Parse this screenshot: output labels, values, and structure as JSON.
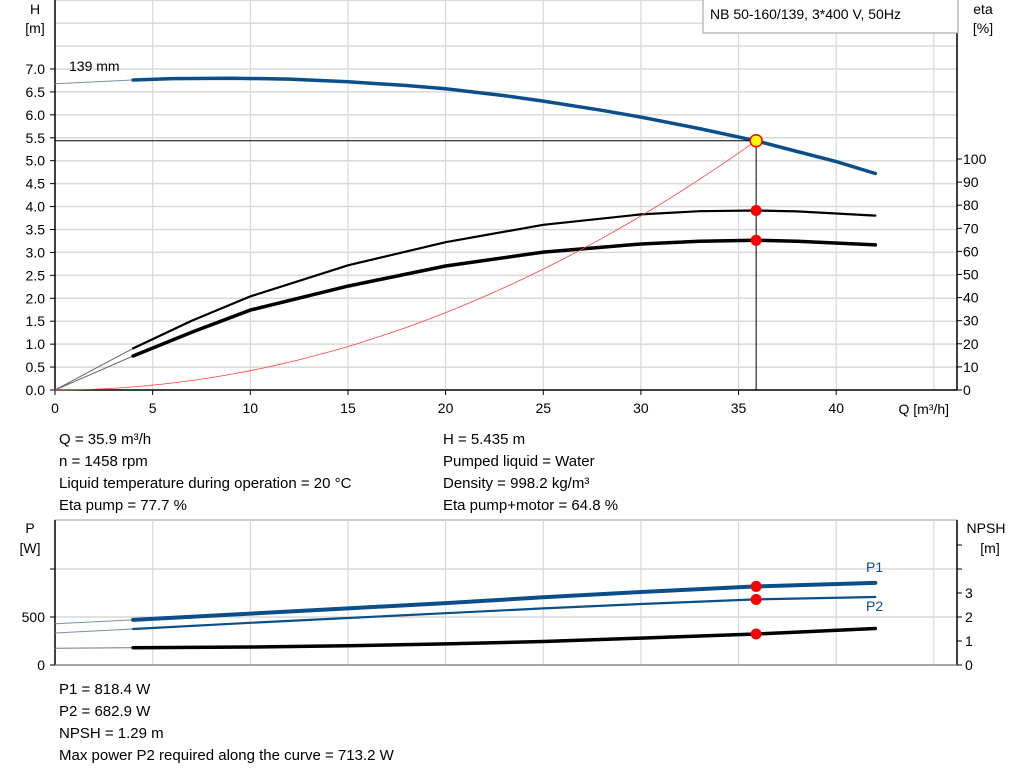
{
  "title_box": "NB 50-160/139, 3*400 V, 50Hz",
  "colors": {
    "pump_curve": "#0b4f8a",
    "system_curve": "#ff4040",
    "duty_marker": "#ff0000",
    "duty_point_fill": "#ffff00",
    "grid": "#d9d9d9"
  },
  "chart_data": [
    {
      "type": "line",
      "xlabel": "Q [m³/h]",
      "ylabel_left": [
        "H",
        "[m]"
      ],
      "ylabel_right": [
        "eta",
        "[%]"
      ],
      "xlim": [
        0,
        46
      ],
      "ylim_left": [
        0,
        8.5
      ],
      "ylim_right_ticks": [
        0,
        10,
        20,
        30,
        40,
        50,
        60,
        70,
        80,
        90,
        100
      ],
      "x_ticks": [
        0,
        5,
        10,
        15,
        20,
        25,
        30,
        35,
        40
      ],
      "y_ticks_left": [
        "0.0",
        "0.5",
        "1.0",
        "1.5",
        "2.0",
        "2.5",
        "3.0",
        "3.5",
        "4.0",
        "4.5",
        "5.0",
        "5.5",
        "6.0",
        "6.5",
        "7.0"
      ],
      "grid": true,
      "curve_label": "139 mm",
      "series": [
        {
          "id": "head",
          "axis": "left",
          "color": "#0b4f8a",
          "points": [
            [
              4,
              6.76
            ],
            [
              6,
              6.79
            ],
            [
              9,
              6.8
            ],
            [
              12,
              6.78
            ],
            [
              15,
              6.72
            ],
            [
              18,
              6.64
            ],
            [
              20,
              6.57
            ],
            [
              23,
              6.42
            ],
            [
              25,
              6.3
            ],
            [
              28,
              6.1
            ],
            [
              30,
              5.95
            ],
            [
              33,
              5.7
            ],
            [
              35.9,
              5.435
            ],
            [
              38,
              5.2
            ],
            [
              40,
              4.98
            ],
            [
              42,
              4.72
            ]
          ],
          "extrapolated": [
            [
              0,
              6.68
            ],
            [
              4,
              6.76
            ]
          ]
        },
        {
          "id": "eta-pump",
          "axis": "right",
          "points": [
            [
              4,
              18
            ],
            [
              7,
              30
            ],
            [
              10,
              40.5
            ],
            [
              15,
              54
            ],
            [
              20,
              64
            ],
            [
              25,
              71.5
            ],
            [
              30,
              76
            ],
            [
              33,
              77.4
            ],
            [
              35.9,
              77.7
            ],
            [
              38,
              77.3
            ],
            [
              42,
              75.5
            ]
          ],
          "extrapolated": [
            [
              0,
              0
            ],
            [
              4,
              18
            ]
          ]
        },
        {
          "id": "eta-pump-motor",
          "axis": "right",
          "points": [
            [
              4,
              14.7
            ],
            [
              7,
              25
            ],
            [
              10,
              34.6
            ],
            [
              15,
              45
            ],
            [
              20,
              53.7
            ],
            [
              25,
              59.7
            ],
            [
              30,
              63.2
            ],
            [
              33,
              64.4
            ],
            [
              35.9,
              64.8
            ],
            [
              38,
              64.4
            ],
            [
              42,
              62.8
            ]
          ],
          "extrapolated": [
            [
              0,
              0
            ],
            [
              4,
              14.7
            ]
          ]
        },
        {
          "id": "system-curve",
          "axis": "left",
          "color": "#ff4040",
          "quadratic_through": [
            35.9,
            5.435
          ]
        }
      ],
      "duty_point": {
        "Q": 35.9,
        "H": 5.435,
        "eta_pump": 77.7,
        "eta_pump_motor": 64.8
      }
    },
    {
      "type": "line",
      "ylabel_left": [
        "P",
        "[W]"
      ],
      "ylabel_right": [
        "NPSH",
        "[m]"
      ],
      "xlim": [
        0,
        46
      ],
      "ylim_left": [
        0,
        1500
      ],
      "y_ticks_left": [
        "0",
        "500"
      ],
      "y_ticks_right": [
        "0",
        "1",
        "2",
        "3"
      ],
      "grid": true,
      "series": [
        {
          "id": "P1",
          "name": "P1",
          "axis": "left",
          "color": "#0b4f8a",
          "points": [
            [
              4,
              470
            ],
            [
              10,
              535
            ],
            [
              15,
              590
            ],
            [
              20,
              645
            ],
            [
              25,
              705
            ],
            [
              30,
              760
            ],
            [
              35.9,
              818.4
            ],
            [
              42,
              855
            ]
          ],
          "extrapolated": [
            [
              0,
              430
            ],
            [
              4,
              470
            ]
          ]
        },
        {
          "id": "P2",
          "name": "P2",
          "axis": "left",
          "color": "#0b4f8a",
          "points": [
            [
              4,
              375
            ],
            [
              10,
              440
            ],
            [
              15,
              490
            ],
            [
              20,
              540
            ],
            [
              25,
              590
            ],
            [
              30,
              635
            ],
            [
              35.9,
              682.9
            ],
            [
              42,
              708
            ]
          ],
          "extrapolated": [
            [
              0,
              333
            ],
            [
              4,
              375
            ]
          ]
        },
        {
          "id": "NPSH",
          "axis": "right",
          "points": [
            [
              4,
              0.72
            ],
            [
              10,
              0.75
            ],
            [
              15,
              0.8
            ],
            [
              20,
              0.88
            ],
            [
              25,
              0.98
            ],
            [
              30,
              1.12
            ],
            [
              35.9,
              1.29
            ],
            [
              42,
              1.52
            ]
          ],
          "extrapolated": [
            [
              0,
              0.7
            ],
            [
              4,
              0.72
            ]
          ]
        }
      ],
      "duty_point": {
        "Q": 35.9,
        "P1": 818.4,
        "P2": 682.9,
        "NPSH": 1.29
      }
    }
  ],
  "info_top": {
    "left": [
      "Q = 35.9 m³/h",
      "n = 1458 rpm",
      "Liquid temperature during operation = 20 °C",
      "Eta pump = 77.7 %"
    ],
    "right": [
      "H = 5.435 m",
      "Pumped liquid = Water",
      "Density = 998.2 kg/m³",
      "Eta pump+motor = 64.8 %"
    ]
  },
  "info_bottom": [
    "P1 = 818.4 W",
    "P2 = 682.9 W",
    "NPSH = 1.29 m",
    "Max power P2 required along the curve = 713.2 W"
  ]
}
